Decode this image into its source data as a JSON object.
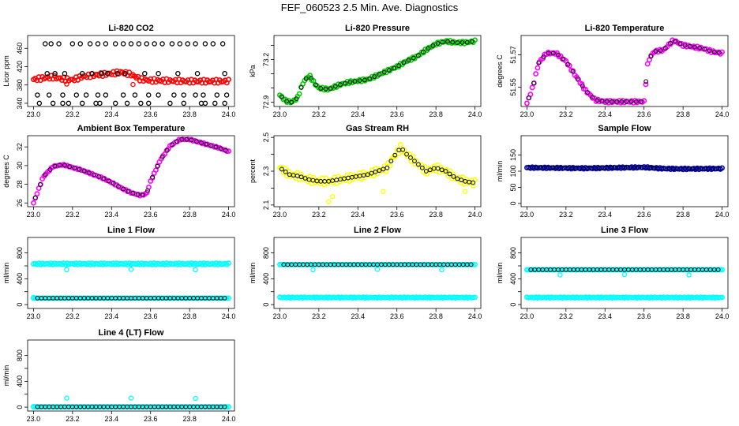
{
  "figure": {
    "title": "FEF_060523  2.5 Min. Ave. Diagnostics"
  },
  "chart_data": [
    {
      "type": "scatter",
      "title": "Li-820 CO2",
      "xlabel": "",
      "ylabel": "Licor ppm",
      "xlim": [
        22.97,
        24.03
      ],
      "ylim": [
        333,
        488
      ],
      "xticks": [
        "23.0",
        "23.2",
        "23.4",
        "23.6",
        "23.8",
        "24.0"
      ],
      "yticks": [
        340,
        380,
        420,
        460
      ],
      "yticks_labeled": [
        340,
        380,
        420,
        460
      ],
      "colors": {
        "primary": "#ff0000",
        "secondary": "#000000"
      },
      "series": [
        {
          "color": "#ff0000",
          "kind": "band",
          "x": [
            23.0,
            23.05,
            23.1,
            23.15,
            23.2,
            23.25,
            23.3,
            23.35,
            23.4,
            23.45,
            23.5,
            23.55,
            23.6,
            23.7,
            23.8,
            23.9,
            24.0
          ],
          "y": [
            392,
            395,
            397,
            393,
            391,
            398,
            401,
            403,
            405,
            408,
            403,
            392,
            390,
            389,
            388,
            388,
            388
          ],
          "spread": 4
        },
        {
          "color": "#ff0000",
          "kind": "points",
          "x": [
            23.17,
            23.51
          ],
          "y": [
            382,
            381
          ]
        },
        {
          "color": "#000000",
          "kind": "points",
          "x": [
            23.06,
            23.09,
            23.13,
            23.2,
            23.24,
            23.29,
            23.33,
            23.37,
            23.42,
            23.46,
            23.5,
            23.54,
            23.58,
            23.62,
            23.66,
            23.71,
            23.75,
            23.79,
            23.83,
            23.88,
            23.92,
            23.97,
            23.07,
            23.11,
            23.16,
            23.25,
            23.3,
            23.35,
            23.38,
            23.43,
            23.47,
            23.57,
            23.64,
            23.74,
            23.84,
            23.98,
            23.02,
            23.08,
            23.15,
            23.22,
            23.27,
            23.33,
            23.37,
            23.46,
            23.52,
            23.59,
            23.64,
            23.72,
            23.77,
            23.83,
            23.87,
            23.94,
            23.99,
            23.03,
            23.1,
            23.15,
            23.18,
            23.25,
            23.32,
            23.34,
            23.42,
            23.48,
            23.55,
            23.59,
            23.7,
            23.77,
            23.86,
            23.88,
            23.93,
            23.98
          ],
          "y": [
            470,
            470,
            470,
            470,
            470,
            470,
            470,
            470,
            470,
            470,
            470,
            470,
            470,
            470,
            470,
            470,
            470,
            470,
            470,
            470,
            470,
            470,
            405,
            405,
            405,
            405,
            405,
            405,
            405,
            405,
            405,
            405,
            405,
            405,
            405,
            405,
            358,
            358,
            358,
            358,
            358,
            358,
            358,
            358,
            358,
            358,
            358,
            358,
            358,
            358,
            358,
            358,
            358,
            340,
            340,
            340,
            340,
            340,
            340,
            340,
            340,
            340,
            340,
            340,
            340,
            340,
            340,
            340,
            340,
            340
          ]
        }
      ]
    },
    {
      "type": "scatter",
      "title": "Li-820 Pressure",
      "xlabel": "",
      "ylabel": "kPa",
      "xlim": [
        22.97,
        24.03
      ],
      "ylim": [
        72.87,
        73.37
      ],
      "xticks": [
        "23.0",
        "23.2",
        "23.4",
        "23.6",
        "23.8",
        "24.0"
      ],
      "yticks": [
        72.9,
        73.0,
        73.1,
        73.2,
        73.3
      ],
      "yticks_labeled": [
        72.9,
        73.2
      ],
      "colors": {
        "primary": "#00cc00",
        "secondary": "#000000"
      },
      "series": [
        {
          "color": "#00cc00",
          "kind": "band",
          "x": [
            23.0,
            23.03,
            23.06,
            23.09,
            23.12,
            23.15,
            23.18,
            23.2,
            23.25,
            23.3,
            23.35,
            23.4,
            23.45,
            23.5,
            23.55,
            23.6,
            23.65,
            23.7,
            23.75,
            23.8,
            23.85,
            23.9,
            23.95,
            24.0
          ],
          "y": [
            72.95,
            72.91,
            72.9,
            72.93,
            73.04,
            73.09,
            73.03,
            73.0,
            72.99,
            73.02,
            73.04,
            73.05,
            73.06,
            73.09,
            73.12,
            73.15,
            73.19,
            73.22,
            73.27,
            73.31,
            73.33,
            73.32,
            73.32,
            73.33
          ],
          "spread": 0.008
        },
        {
          "color": "#000000",
          "kind": "onband",
          "step": 0.025
        }
      ]
    },
    {
      "type": "scatter",
      "title": "Li-820 Temperature",
      "xlabel": "",
      "ylabel": "degrees C",
      "xlim": [
        22.97,
        24.03
      ],
      "ylim": [
        51.538,
        51.582
      ],
      "xticks": [
        "23.0",
        "23.2",
        "23.4",
        "23.6",
        "23.8",
        "24.0"
      ],
      "yticks": [
        51.55,
        51.57
      ],
      "yticks_labeled": [
        51.55,
        51.57
      ],
      "colors": {
        "primary": "#ff00ff",
        "secondary": "#000000"
      },
      "series": [
        {
          "color": "#ff00ff",
          "kind": "band",
          "x": [
            23.0,
            23.03,
            23.06,
            23.1,
            23.15,
            23.2,
            23.25,
            23.3,
            23.35,
            23.4,
            23.45,
            23.5,
            23.55,
            23.6,
            23.62,
            23.65,
            23.7,
            23.75,
            23.8,
            23.85,
            23.9,
            23.95,
            24.0
          ],
          "y": [
            51.54,
            51.55,
            51.565,
            51.571,
            51.571,
            51.566,
            51.557,
            51.548,
            51.542,
            51.541,
            51.541,
            51.541,
            51.541,
            51.541,
            51.566,
            51.572,
            51.573,
            51.579,
            51.576,
            51.575,
            51.574,
            51.572,
            51.571
          ],
          "spread": 0.0007
        },
        {
          "color": "#000000",
          "kind": "onband",
          "step": 0.025
        }
      ]
    },
    {
      "type": "scatter",
      "title": "Ambient Box Temperature",
      "xlabel": "",
      "ylabel": "degrees C",
      "xlim": [
        22.97,
        24.03
      ],
      "ylim": [
        25.6,
        33.2
      ],
      "xticks": [
        "23.0",
        "23.2",
        "23.4",
        "23.6",
        "23.8",
        "24.0"
      ],
      "yticks": [
        26,
        28,
        30,
        32
      ],
      "yticks_labeled": [
        26,
        28,
        30,
        32
      ],
      "colors": {
        "primary": "#ff00ff",
        "secondary": "#000000"
      },
      "series": [
        {
          "color": "#ff00ff",
          "kind": "band",
          "x": [
            23.0,
            23.05,
            23.1,
            23.15,
            23.2,
            23.25,
            23.3,
            23.35,
            23.4,
            23.45,
            23.5,
            23.55,
            23.58,
            23.6,
            23.65,
            23.7,
            23.75,
            23.8,
            23.85,
            23.9,
            23.95,
            24.0
          ],
          "y": [
            26.0,
            28.8,
            29.9,
            30.1,
            29.8,
            29.5,
            29.1,
            28.7,
            28.2,
            27.6,
            27.1,
            26.8,
            27.0,
            28.3,
            30.6,
            32.1,
            32.8,
            32.8,
            32.5,
            32.2,
            31.9,
            31.5
          ],
          "spread": 0.05
        },
        {
          "color": "#000000",
          "kind": "onband",
          "step": 0.025
        }
      ]
    },
    {
      "type": "scatter",
      "title": "Gas Stream RH",
      "xlabel": "",
      "ylabel": "percent",
      "xlim": [
        22.97,
        24.03
      ],
      "ylim": [
        2.09,
        2.51
      ],
      "xticks": [
        "23.0",
        "23.2",
        "23.4",
        "23.6",
        "23.8",
        "24.0"
      ],
      "yticks": [
        2.1,
        2.2,
        2.3,
        2.4,
        2.5
      ],
      "yticks_labeled": [
        2.1,
        2.3,
        2.5
      ],
      "colors": {
        "primary": "#ffff00",
        "secondary": "#000000"
      },
      "series": [
        {
          "color": "#ffff00",
          "kind": "band",
          "x": [
            23.0,
            23.05,
            23.1,
            23.15,
            23.2,
            23.25,
            23.3,
            23.35,
            23.4,
            23.45,
            23.5,
            23.55,
            23.58,
            23.62,
            23.65,
            23.7,
            23.75,
            23.8,
            23.85,
            23.9,
            23.95,
            24.0
          ],
          "y": [
            2.32,
            2.28,
            2.27,
            2.25,
            2.24,
            2.24,
            2.25,
            2.26,
            2.27,
            2.28,
            2.3,
            2.32,
            2.38,
            2.44,
            2.4,
            2.35,
            2.3,
            2.32,
            2.3,
            2.26,
            2.24,
            2.23
          ],
          "spread": 0.02
        },
        {
          "color": "#ffff00",
          "kind": "points",
          "x": [
            23.25,
            23.27,
            23.53,
            23.95
          ],
          "y": [
            2.12,
            2.15,
            2.18,
            2.18
          ]
        },
        {
          "color": "#000000",
          "kind": "onband",
          "step": 0.02
        }
      ]
    },
    {
      "type": "scatter",
      "title": "Sample Flow",
      "xlabel": "",
      "ylabel": "ml/min",
      "xlim": [
        22.97,
        24.03
      ],
      "ylim": [
        -10,
        210
      ],
      "xticks": [
        "23.0",
        "23.2",
        "23.4",
        "23.6",
        "23.8",
        "24.0"
      ],
      "yticks": [
        0,
        50,
        100,
        150
      ],
      "yticks_labeled": [
        0,
        50,
        100,
        150
      ],
      "colors": {
        "primary": "#0000cc",
        "secondary": "#000000"
      },
      "series": [
        {
          "color": "#0000cc",
          "kind": "band",
          "x": [
            23.0,
            23.3,
            23.6,
            23.7,
            23.8,
            24.0
          ],
          "y": [
            111,
            109,
            112,
            108,
            107,
            108
          ],
          "spread": 2
        },
        {
          "color": "#000000",
          "kind": "onband",
          "step": 0.02
        }
      ]
    },
    {
      "type": "scatter",
      "title": "Line 1 Flow",
      "xlabel": "",
      "ylabel": "ml/min",
      "xlim": [
        22.97,
        24.03
      ],
      "ylim": [
        -60,
        1040
      ],
      "xticks": [
        "23.0",
        "23.2",
        "23.4",
        "23.6",
        "23.8",
        "24.0"
      ],
      "yticks": [
        0,
        200,
        400,
        600,
        800
      ],
      "yticks_labeled": [
        0,
        400,
        800
      ],
      "colors": {
        "primary": "#00ffff",
        "secondary": "#000000"
      },
      "series": [
        {
          "color": "#00ffff",
          "kind": "band",
          "x": [
            23.0,
            24.0
          ],
          "y": [
            630,
            630
          ],
          "spread": 12
        },
        {
          "color": "#00ffff",
          "kind": "band",
          "x": [
            23.0,
            24.0
          ],
          "y": [
            100,
            100
          ],
          "spread": 0
        },
        {
          "color": "#00ffff",
          "kind": "points",
          "x": [
            23.0,
            23.17,
            23.5,
            23.83
          ],
          "y": [
            110,
            540,
            545,
            540
          ]
        },
        {
          "color": "#000000",
          "kind": "row",
          "x0": 23.02,
          "x1": 23.99,
          "y": 100,
          "step": 0.02
        }
      ]
    },
    {
      "type": "scatter",
      "title": "Line 2 Flow",
      "xlabel": "",
      "ylabel": "ml/min",
      "xlim": [
        22.97,
        24.03
      ],
      "ylim": [
        -60,
        1040
      ],
      "xticks": [
        "23.0",
        "23.2",
        "23.4",
        "23.6",
        "23.8",
        "24.0"
      ],
      "yticks": [
        0,
        200,
        400,
        600,
        800
      ],
      "yticks_labeled": [
        0,
        400,
        800
      ],
      "colors": {
        "primary": "#00ffff",
        "secondary": "#000000"
      },
      "series": [
        {
          "color": "#00ffff",
          "kind": "band",
          "x": [
            23.0,
            24.0
          ],
          "y": [
            620,
            620
          ],
          "spread": 0
        },
        {
          "color": "#00ffff",
          "kind": "band",
          "x": [
            23.0,
            24.0
          ],
          "y": [
            110,
            110
          ],
          "spread": 6
        },
        {
          "color": "#00ffff",
          "kind": "points",
          "x": [
            23.0,
            23.17,
            23.5,
            23.83
          ],
          "y": [
            620,
            540,
            545,
            540
          ]
        },
        {
          "color": "#000000",
          "kind": "row",
          "x0": 23.02,
          "x1": 23.99,
          "y": 620,
          "step": 0.02
        }
      ]
    },
    {
      "type": "scatter",
      "title": "Line 3 Flow",
      "xlabel": "",
      "ylabel": "ml/min",
      "xlim": [
        22.97,
        24.03
      ],
      "ylim": [
        -60,
        1040
      ],
      "xticks": [
        "23.0",
        "23.2",
        "23.4",
        "23.6",
        "23.8",
        "24.0"
      ],
      "yticks": [
        0,
        200,
        400,
        600,
        800
      ],
      "yticks_labeled": [
        0,
        400,
        800
      ],
      "colors": {
        "primary": "#00ffff",
        "secondary": "#000000"
      },
      "series": [
        {
          "color": "#00ffff",
          "kind": "band",
          "x": [
            23.0,
            24.0
          ],
          "y": [
            540,
            540
          ],
          "spread": 0
        },
        {
          "color": "#00ffff",
          "kind": "band",
          "x": [
            23.0,
            24.0
          ],
          "y": [
            110,
            110
          ],
          "spread": 6
        },
        {
          "color": "#00ffff",
          "kind": "points",
          "x": [
            23.0,
            23.17,
            23.5,
            23.83
          ],
          "y": [
            540,
            460,
            465,
            460
          ]
        },
        {
          "color": "#000000",
          "kind": "row",
          "x0": 23.02,
          "x1": 23.99,
          "y": 540,
          "step": 0.02
        }
      ]
    },
    {
      "type": "scatter",
      "title": "Line 4 (LT) Flow",
      "xlabel": "",
      "ylabel": "ml/min",
      "xlim": [
        22.97,
        24.03
      ],
      "ylim": [
        -60,
        1040
      ],
      "xticks": [
        "23.0",
        "23.2",
        "23.4",
        "23.6",
        "23.8",
        "24.0"
      ],
      "yticks": [
        0,
        200,
        400,
        600,
        800
      ],
      "yticks_labeled": [
        0,
        400,
        800
      ],
      "colors": {
        "primary": "#00ffff",
        "secondary": "#000000"
      },
      "series": [
        {
          "color": "#00ffff",
          "kind": "band",
          "x": [
            23.0,
            24.0
          ],
          "y": [
            5,
            5
          ],
          "spread": 0
        },
        {
          "color": "#00ffff",
          "kind": "points",
          "x": [
            23.0,
            23.17,
            23.5,
            23.83
          ],
          "y": [
            10,
            140,
            140,
            135
          ]
        },
        {
          "color": "#000000",
          "kind": "row",
          "x0": 23.02,
          "x1": 23.99,
          "y": 5,
          "step": 0.02
        }
      ]
    }
  ]
}
